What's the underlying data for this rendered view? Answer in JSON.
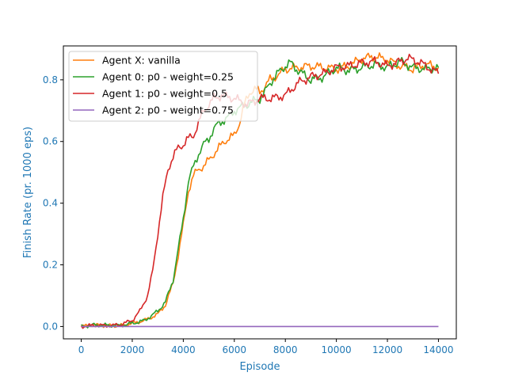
{
  "chart_data": {
    "type": "line",
    "title": "",
    "xlabel": "Episode",
    "ylabel": "Finish Rate (pr. 1000 eps)",
    "xlim": [
      -700,
      14700
    ],
    "ylim": [
      -0.04,
      0.91
    ],
    "xticks": [
      0,
      2000,
      4000,
      6000,
      8000,
      10000,
      12000,
      14000
    ],
    "yticks": [
      0.0,
      0.2,
      0.4,
      0.6,
      0.8
    ],
    "xtick_labels": [
      "0",
      "2000",
      "4000",
      "6000",
      "8000",
      "10000",
      "12000",
      "14000"
    ],
    "ytick_labels": [
      "0.0",
      "0.2",
      "0.4",
      "0.6",
      "0.8"
    ],
    "label_color": "#1f77b4",
    "grid": false,
    "legend": "top-left",
    "series": [
      {
        "name": "Agent X: vanilla",
        "color": "#ff7f0e",
        "x": [
          0,
          500,
          1000,
          1500,
          2000,
          2500,
          3000,
          3300,
          3600,
          3800,
          4000,
          4200,
          4400,
          4600,
          4800,
          5000,
          5200,
          5400,
          5600,
          5800,
          6000,
          6200,
          6400,
          6600,
          6800,
          7000,
          7200,
          7400,
          7600,
          7800,
          8000,
          8500,
          9000,
          9500,
          10000,
          10500,
          11000,
          11500,
          12000,
          12500,
          13000,
          13500,
          14000
        ],
        "y": [
          0.0,
          0.005,
          0.003,
          0.002,
          0.01,
          0.02,
          0.04,
          0.07,
          0.14,
          0.23,
          0.33,
          0.44,
          0.49,
          0.51,
          0.52,
          0.54,
          0.56,
          0.58,
          0.6,
          0.61,
          0.62,
          0.66,
          0.72,
          0.76,
          0.77,
          0.76,
          0.78,
          0.8,
          0.81,
          0.82,
          0.835,
          0.84,
          0.845,
          0.84,
          0.835,
          0.845,
          0.87,
          0.875,
          0.865,
          0.845,
          0.835,
          0.85,
          0.84
        ]
      },
      {
        "name": "Agent 0: p0 - weight=0.25",
        "color": "#2ca02c",
        "x": [
          0,
          500,
          1000,
          1500,
          2000,
          2500,
          3000,
          3300,
          3600,
          3800,
          4000,
          4200,
          4400,
          4600,
          4800,
          5000,
          5200,
          5400,
          5600,
          5800,
          6000,
          6500,
          7000,
          7200,
          7400,
          7600,
          7800,
          8000,
          8200,
          8500,
          9000,
          9500,
          10000,
          10500,
          11000,
          11500,
          12000,
          12500,
          13000,
          13500,
          14000
        ],
        "y": [
          0.0,
          0.005,
          0.004,
          0.003,
          0.01,
          0.02,
          0.05,
          0.08,
          0.15,
          0.25,
          0.35,
          0.47,
          0.52,
          0.56,
          0.59,
          0.61,
          0.64,
          0.66,
          0.67,
          0.68,
          0.7,
          0.72,
          0.74,
          0.76,
          0.79,
          0.81,
          0.83,
          0.845,
          0.855,
          0.83,
          0.8,
          0.81,
          0.84,
          0.83,
          0.84,
          0.85,
          0.84,
          0.86,
          0.84,
          0.835,
          0.84
        ]
      },
      {
        "name": "Agent 1: p0 - weight=0.5",
        "color": "#d62728",
        "x": [
          0,
          500,
          1000,
          1500,
          2000,
          2300,
          2600,
          2800,
          3000,
          3200,
          3400,
          3600,
          3800,
          4000,
          4200,
          4400,
          4600,
          4800,
          5000,
          5200,
          5500,
          6000,
          6500,
          7000,
          7500,
          8000,
          8500,
          9000,
          9500,
          10000,
          10500,
          11000,
          11500,
          12000,
          12500,
          12800,
          13200,
          13600,
          14000
        ],
        "y": [
          0.0,
          0.004,
          0.003,
          0.005,
          0.02,
          0.05,
          0.1,
          0.18,
          0.3,
          0.42,
          0.51,
          0.55,
          0.58,
          0.59,
          0.61,
          0.62,
          0.66,
          0.7,
          0.72,
          0.74,
          0.75,
          0.74,
          0.72,
          0.74,
          0.74,
          0.75,
          0.79,
          0.81,
          0.82,
          0.84,
          0.845,
          0.855,
          0.86,
          0.845,
          0.86,
          0.87,
          0.86,
          0.84,
          0.82
        ]
      },
      {
        "name": "Agent 2: p0 - weight=0.75",
        "color": "#9467bd",
        "x": [
          0,
          14000
        ],
        "y": [
          0.0,
          0.0
        ]
      }
    ]
  }
}
